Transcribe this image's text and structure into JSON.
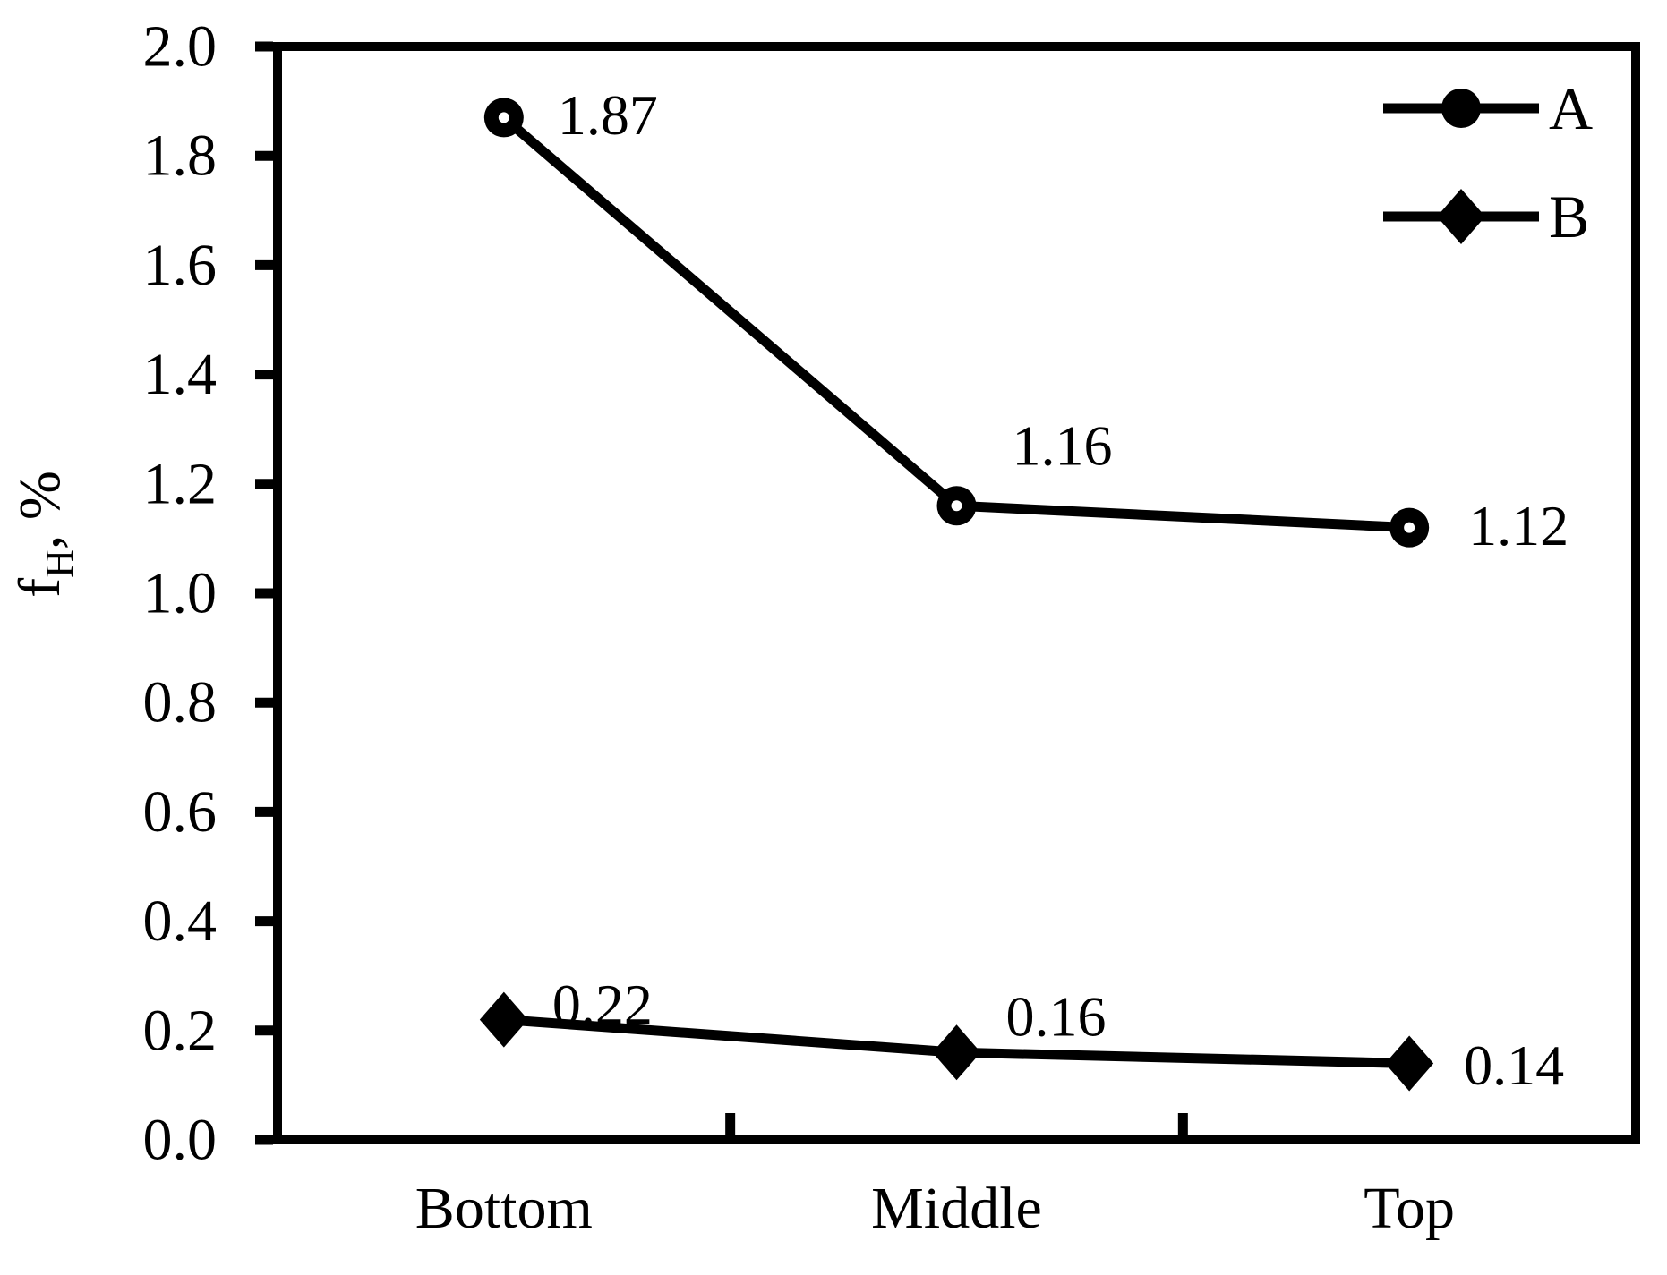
{
  "chart_data": {
    "type": "line",
    "title": "",
    "categories": [
      "Bottom",
      "Middle",
      "Top"
    ],
    "series": [
      {
        "name": "A",
        "marker": "circle",
        "values": [
          1.87,
          1.16,
          1.12
        ],
        "point_labels": [
          "1.87",
          "1.16",
          "1.12"
        ],
        "label_offsets": [
          [
            60,
            -3
          ],
          [
            62,
            -67
          ],
          [
            66,
            -2
          ]
        ]
      },
      {
        "name": "B",
        "marker": "diamond",
        "values": [
          0.22,
          0.16,
          0.14
        ],
        "point_labels": [
          "0.22",
          "0.16",
          "0.14"
        ],
        "label_offsets": [
          [
            54,
            -17
          ],
          [
            55,
            -40
          ],
          [
            61,
            2
          ]
        ]
      }
    ],
    "xlabel": "",
    "ylabel": {
      "base": "f",
      "subscript": "H",
      "suffix": ", %"
    },
    "ylim": [
      0,
      2
    ],
    "y_ticks": [
      "0.0",
      "0.2",
      "0.4",
      "0.6",
      "0.8",
      "1.0",
      "1.2",
      "1.4",
      "1.6",
      "1.8",
      "2.0"
    ],
    "grid": false,
    "legend_position": "top-right-inside",
    "legend_labels": [
      "A",
      "B"
    ],
    "color": "#000000",
    "background": "#ffffff"
  }
}
